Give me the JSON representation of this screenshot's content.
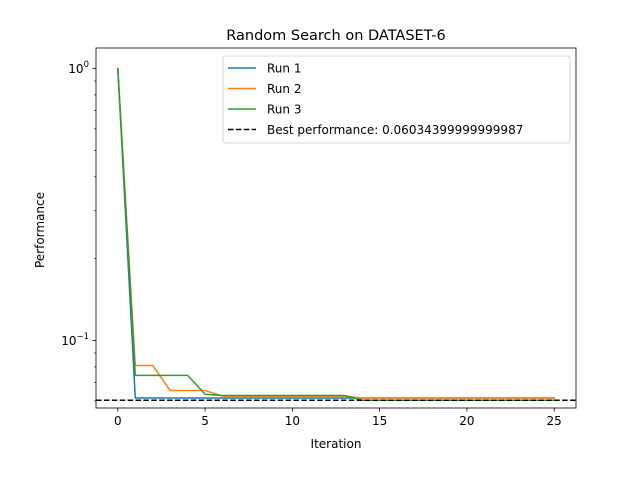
{
  "chart_data": {
    "type": "line",
    "title": "Random Search on DATASET-6",
    "xlabel": "Iteration",
    "ylabel": "Performance",
    "yscale": "log",
    "xlim": [
      -1.25,
      26.25
    ],
    "ylim": [
      0.0565,
      1.19
    ],
    "x_ticks": [
      0,
      5,
      10,
      15,
      20,
      25
    ],
    "y_ticks": [
      {
        "value": 1.0,
        "label": "10^0"
      },
      {
        "value": 0.1,
        "label": "10^-1"
      }
    ],
    "grid": false,
    "legend_position": "top-right",
    "x": [
      0,
      1,
      2,
      3,
      4,
      5,
      6,
      7,
      8,
      9,
      10,
      11,
      12,
      13,
      14,
      15,
      16,
      17,
      18,
      19,
      20,
      21,
      22,
      23,
      24,
      25
    ],
    "series": [
      {
        "name": "Run 1",
        "color": "#1f77b4",
        "values": [
          1.0,
          0.0615,
          0.0615,
          0.0615,
          0.0615,
          0.0615,
          0.0615,
          0.0615,
          0.0615,
          0.0615,
          0.0615,
          0.0615,
          0.0615,
          0.0615,
          0.0615,
          0.0615,
          0.0615,
          0.0615,
          0.0615,
          0.0615,
          0.0615,
          0.0615,
          0.0615,
          0.0615,
          0.0615,
          0.0615
        ]
      },
      {
        "name": "Run 2",
        "color": "#ff7f0e",
        "values": [
          1.0,
          0.081,
          0.081,
          0.0655,
          0.0655,
          0.0655,
          0.0625,
          0.0625,
          0.0625,
          0.0625,
          0.0625,
          0.0625,
          0.0625,
          0.0625,
          0.0615,
          0.0615,
          0.0615,
          0.0615,
          0.0615,
          0.0615,
          0.0615,
          0.0615,
          0.0615,
          0.0615,
          0.0615,
          0.0615
        ]
      },
      {
        "name": "Run 3",
        "color": "#2ca02c",
        "values": [
          1.0,
          0.0745,
          0.0745,
          0.0745,
          0.0745,
          0.0635,
          0.0628,
          0.0628,
          0.0628,
          0.0628,
          0.0628,
          0.0628,
          0.0628,
          0.0628,
          0.06034,
          0.06034,
          0.06034,
          0.06034,
          0.06034,
          0.06034,
          0.06034,
          0.06034,
          0.06034,
          0.06034,
          0.06034,
          0.06034
        ]
      }
    ],
    "reference_line": {
      "name": "Best performance: 0.06034399999999987",
      "value": 0.06034399999999987,
      "color": "#000000",
      "style": "dashed"
    }
  }
}
